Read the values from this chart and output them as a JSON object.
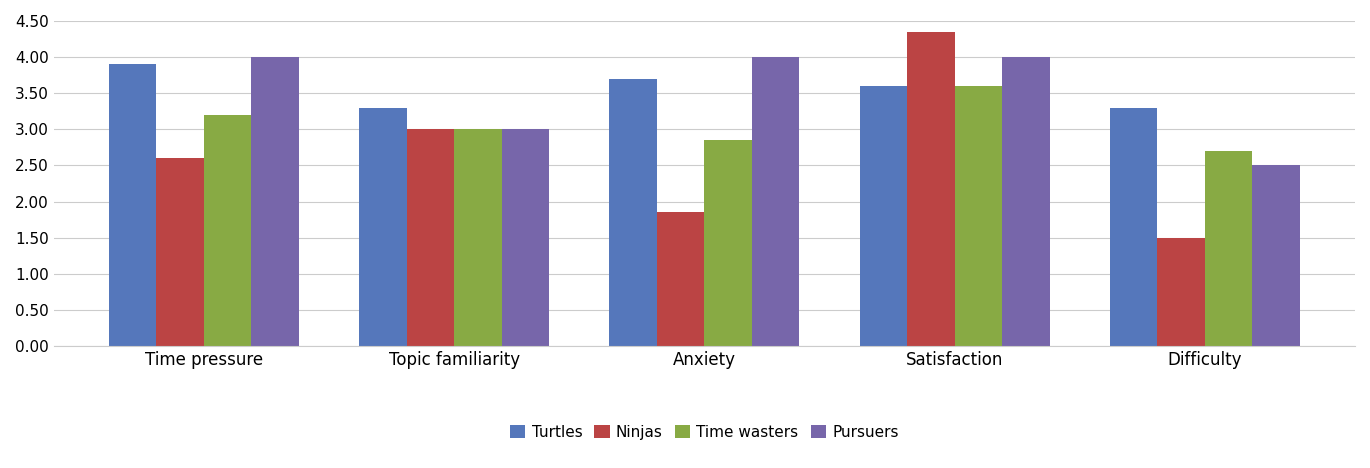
{
  "categories": [
    "Time pressure",
    "Topic familiarity",
    "Anxiety",
    "Satisfaction",
    "Difficulty"
  ],
  "series": {
    "Turtles": [
      3.9,
      3.3,
      3.7,
      3.6,
      3.3
    ],
    "Ninjas": [
      2.6,
      3.0,
      1.85,
      4.35,
      1.5
    ],
    "Time wasters": [
      3.2,
      3.0,
      2.85,
      3.6,
      2.7
    ],
    "Pursuers": [
      4.0,
      3.0,
      4.0,
      4.0,
      2.5
    ]
  },
  "colors": {
    "Turtles": "#5577bb",
    "Ninjas": "#bb4444",
    "Time wasters": "#88aa44",
    "Pursuers": "#7766aa"
  },
  "ylim": [
    0,
    4.5
  ],
  "yticks": [
    0.0,
    0.5,
    1.0,
    1.5,
    2.0,
    2.5,
    3.0,
    3.5,
    4.0,
    4.5
  ],
  "ytick_labels": [
    "0.00",
    "0.50",
    "1.00",
    "1.50",
    "2.00",
    "2.50",
    "3.00",
    "3.50",
    "4.00",
    "4.50"
  ],
  "bar_width": 0.19,
  "background_color": "#ffffff",
  "grid_color": "#cccccc",
  "legend_fontsize": 11,
  "tick_fontsize": 11,
  "xlabel_fontsize": 12
}
